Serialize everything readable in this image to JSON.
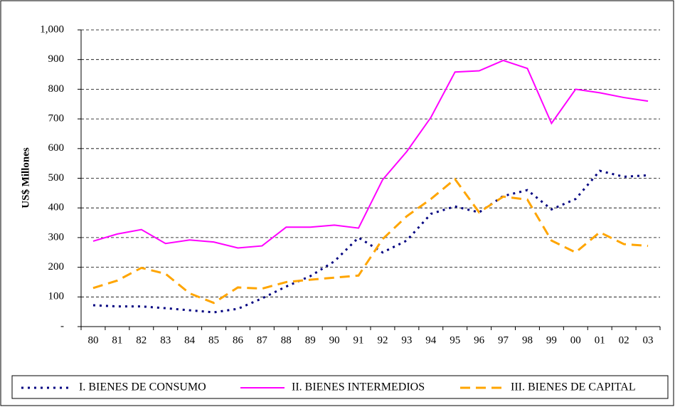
{
  "chart_data": {
    "type": "line",
    "y_label": "US$ Millones",
    "categories": [
      "80",
      "81",
      "82",
      "83",
      "84",
      "85",
      "86",
      "87",
      "88",
      "89",
      "90",
      "91",
      "92",
      "93",
      "94",
      "95",
      "96",
      "97",
      "98",
      "99",
      "00",
      "01",
      "02",
      "03"
    ],
    "series": [
      {
        "name": "I. BIENES DE CONSUMO",
        "color": "#000080",
        "style": "dotted",
        "values": [
          72,
          68,
          68,
          62,
          55,
          48,
          60,
          95,
          135,
          170,
          220,
          300,
          250,
          290,
          380,
          405,
          385,
          440,
          460,
          395,
          430,
          525,
          505,
          510
        ]
      },
      {
        "name": "II. BIENES INTERMEDIOS",
        "color": "#ff00ff",
        "style": "solid",
        "values": [
          288,
          312,
          327,
          280,
          292,
          285,
          265,
          272,
          335,
          335,
          342,
          332,
          495,
          590,
          705,
          858,
          862,
          897,
          870,
          685,
          800,
          788,
          772,
          760
        ]
      },
      {
        "name": "III. BIENES DE CAPITAL",
        "color": "#ffa500",
        "style": "dashed",
        "values": [
          130,
          155,
          198,
          178,
          112,
          80,
          132,
          128,
          150,
          158,
          165,
          172,
          295,
          372,
          430,
          497,
          385,
          438,
          428,
          290,
          250,
          318,
          278,
          272
        ]
      }
    ],
    "ylim": [
      0,
      1000
    ],
    "yticks": [
      {
        "value": 0,
        "label": "-"
      },
      100,
      200,
      300,
      400,
      500,
      600,
      700,
      800,
      900,
      {
        "value": 1000,
        "label": "1,000"
      }
    ],
    "grid": true,
    "legend": "bottom"
  }
}
